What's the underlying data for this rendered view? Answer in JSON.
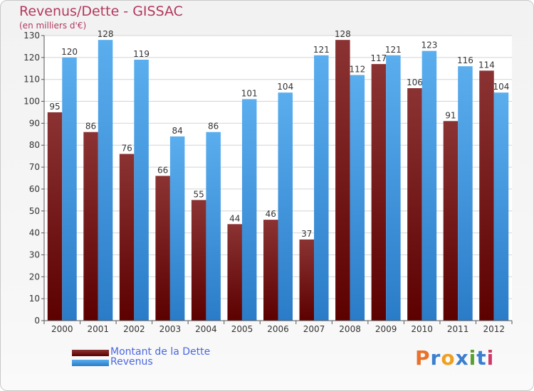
{
  "header": {
    "title": "Revenus/Dette - GISSAC",
    "subtitle": "(en milliers d'€)"
  },
  "logo": {
    "text": "Proxiti",
    "letters": [
      "P",
      "r",
      "o",
      "x",
      "i",
      "t",
      "i"
    ],
    "colors": [
      "#e8712c",
      "#3a7fd0",
      "#f0a020",
      "#3a7fd0",
      "#5aa02c",
      "#3a7fd0",
      "#d03a6a"
    ]
  },
  "colors": {
    "dette": "#7a1a1a",
    "revenus": "#4a9be0",
    "grid": "#d4d4d4",
    "axis": "#555555"
  },
  "chart_data": {
    "type": "bar",
    "title": "Revenus/Dette - GISSAC",
    "subtitle": "(en milliers d'€)",
    "categories": [
      "2000",
      "2001",
      "2002",
      "2003",
      "2004",
      "2005",
      "2006",
      "2007",
      "2008",
      "2009",
      "2010",
      "2011",
      "2012"
    ],
    "series": [
      {
        "name": "Montant de la Dette",
        "values": [
          95,
          86,
          76,
          66,
          55,
          44,
          46,
          37,
          128,
          117,
          106,
          91,
          114
        ]
      },
      {
        "name": "Revenus",
        "values": [
          120,
          128,
          119,
          84,
          86,
          101,
          104,
          121,
          112,
          121,
          123,
          116,
          104
        ]
      }
    ],
    "ylim": [
      0,
      130
    ],
    "yticks": [
      0,
      10,
      20,
      30,
      40,
      50,
      60,
      70,
      80,
      90,
      100,
      110,
      120,
      130
    ],
    "grid": true,
    "legend": "bottom-left"
  }
}
